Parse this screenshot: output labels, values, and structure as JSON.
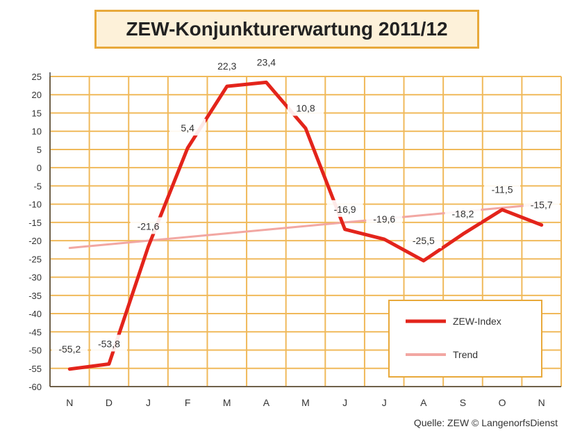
{
  "chart_data": {
    "type": "line",
    "title": "ZEW-Konjunkturerwartung 2011/12",
    "categories": [
      "N",
      "D",
      "J",
      "F",
      "M",
      "A",
      "M",
      "J",
      "J",
      "A",
      "S",
      "O",
      "N"
    ],
    "series": [
      {
        "name": "ZEW-Index",
        "color": "#e3241b",
        "values": [
          -55.2,
          -53.8,
          -21.6,
          5.4,
          22.3,
          23.4,
          10.8,
          -16.9,
          -19.6,
          -25.5,
          -18.2,
          -11.5,
          -15.7
        ],
        "labels": [
          "-55,2",
          "-53,8",
          "-21,6",
          "5,4",
          "22,3",
          "23,4",
          "10,8",
          "-16,9",
          "-19,6",
          "-25,5",
          "-18,2",
          "-11,5",
          "-15,7"
        ]
      },
      {
        "name": "Trend",
        "color": "#f2a7a2",
        "values": [
          -22.0,
          -21.0,
          -20.0,
          -19.0,
          -18.0,
          -17.0,
          -16.0,
          -15.0,
          -14.0,
          -13.0,
          -12.0,
          -11.0,
          -10.0
        ]
      }
    ],
    "ylim": [
      -60,
      25
    ],
    "yticks": [
      25,
      20,
      15,
      10,
      5,
      0,
      -5,
      -10,
      -15,
      -20,
      -25,
      -30,
      -35,
      -40,
      -45,
      -50,
      -55,
      -60
    ],
    "grid": true,
    "legend_position": "bottom-right",
    "source": "Quelle: ZEW © LangenorfsDienst"
  }
}
